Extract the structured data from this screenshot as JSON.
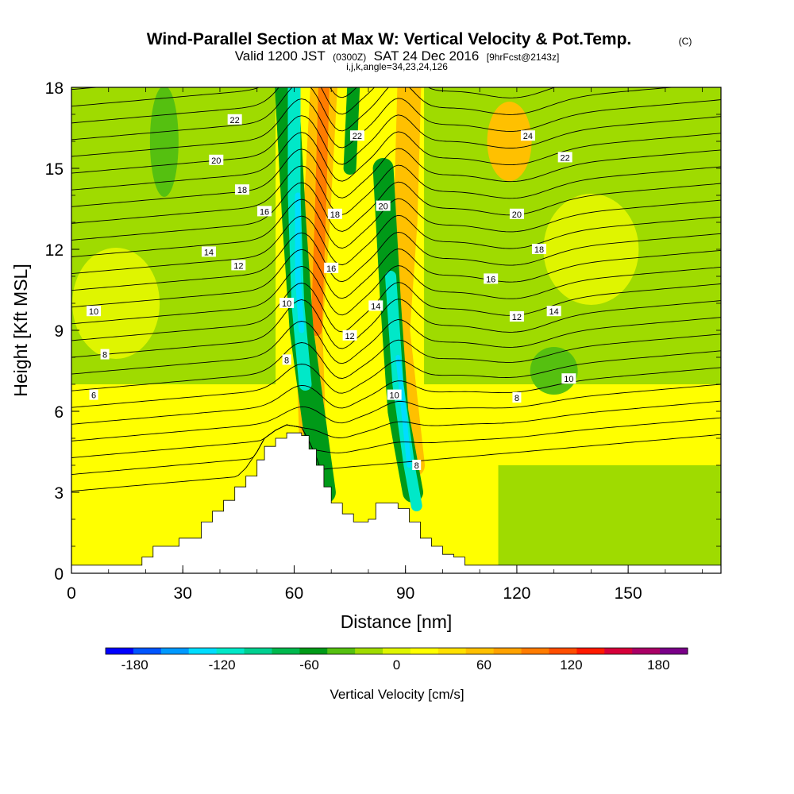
{
  "header": {
    "title": "Wind-Parallel Section at Max W: Vertical Velocity & Pot.Temp.",
    "copyright": "(C)",
    "valid_label": "Valid 1200 JST",
    "utc_label": "(0300Z)",
    "date_label": "SAT 24 Dec 2016",
    "fcst_label": "[9hrFcst@2143z]",
    "indices_label": "i,j,k,angle=34,23,24,126"
  },
  "chart_data": {
    "type": "heatmap",
    "xlabel": "Distance [nm]",
    "ylabel": "Height [Kft MSL]",
    "xlim": [
      0,
      175
    ],
    "ylim": [
      0,
      18
    ],
    "x_ticks": [
      "0",
      "30",
      "60",
      "90",
      "120",
      "150"
    ],
    "y_ticks": [
      "0",
      "3",
      "6",
      "9",
      "12",
      "15",
      "18"
    ],
    "colorbar": {
      "label": "Vertical Velocity [cm/s]",
      "range": [
        -200,
        200
      ],
      "tick_labels": [
        "-180",
        "-120",
        "-60",
        "0",
        "60",
        "120",
        "180"
      ],
      "colors": [
        "#0000ff",
        "#0055ff",
        "#0099ff",
        "#00ddff",
        "#00e8c8",
        "#00d090",
        "#00b84e",
        "#009a18",
        "#55c010",
        "#9fdb00",
        "#dff500",
        "#ffff00",
        "#ffe000",
        "#ffc000",
        "#ffa200",
        "#ff7c00",
        "#ff4e00",
        "#ff1a00",
        "#d6003a",
        "#aa0066",
        "#7a0088"
      ]
    },
    "terrain_height_kft": [
      {
        "x": 0,
        "h": 0.3
      },
      {
        "x": 18,
        "h": 0.3
      },
      {
        "x": 19,
        "h": 0.6
      },
      {
        "x": 22,
        "h": 1.0
      },
      {
        "x": 29,
        "h": 1.3
      },
      {
        "x": 35,
        "h": 1.9
      },
      {
        "x": 38,
        "h": 2.3
      },
      {
        "x": 41,
        "h": 2.7
      },
      {
        "x": 44,
        "h": 3.2
      },
      {
        "x": 47,
        "h": 3.6
      },
      {
        "x": 50,
        "h": 4.2
      },
      {
        "x": 52,
        "h": 4.7
      },
      {
        "x": 55,
        "h": 5.0
      },
      {
        "x": 58,
        "h": 5.2
      },
      {
        "x": 62,
        "h": 5.1
      },
      {
        "x": 64,
        "h": 4.6
      },
      {
        "x": 66,
        "h": 4.0
      },
      {
        "x": 68,
        "h": 3.2
      },
      {
        "x": 70,
        "h": 2.6
      },
      {
        "x": 73,
        "h": 2.2
      },
      {
        "x": 76,
        "h": 1.9
      },
      {
        "x": 80,
        "h": 2.0
      },
      {
        "x": 82,
        "h": 2.6
      },
      {
        "x": 86,
        "h": 2.6
      },
      {
        "x": 88,
        "h": 2.4
      },
      {
        "x": 91,
        "h": 1.9
      },
      {
        "x": 94,
        "h": 1.3
      },
      {
        "x": 97,
        "h": 1.0
      },
      {
        "x": 100,
        "h": 0.7
      },
      {
        "x": 103,
        "h": 0.6
      },
      {
        "x": 106,
        "h": 0.3
      },
      {
        "x": 175,
        "h": 0.3
      }
    ],
    "contour_labels": [
      {
        "text": "6",
        "x": 6,
        "y": 6.6
      },
      {
        "text": "8",
        "x": 9,
        "y": 8.1
      },
      {
        "text": "10",
        "x": 6,
        "y": 9.7
      },
      {
        "text": "12",
        "x": 45,
        "y": 11.4
      },
      {
        "text": "14",
        "x": 37,
        "y": 11.9
      },
      {
        "text": "16",
        "x": 52,
        "y": 13.4
      },
      {
        "text": "18",
        "x": 46,
        "y": 14.2
      },
      {
        "text": "20",
        "x": 39,
        "y": 15.3
      },
      {
        "text": "22",
        "x": 44,
        "y": 16.8
      },
      {
        "text": "10",
        "x": 58,
        "y": 10.0
      },
      {
        "text": "8",
        "x": 58,
        "y": 7.9
      },
      {
        "text": "18",
        "x": 71,
        "y": 13.3
      },
      {
        "text": "16",
        "x": 70,
        "y": 11.3
      },
      {
        "text": "22",
        "x": 77,
        "y": 16.2
      },
      {
        "text": "20",
        "x": 84,
        "y": 13.6
      },
      {
        "text": "14",
        "x": 82,
        "y": 9.9
      },
      {
        "text": "12",
        "x": 75,
        "y": 8.8
      },
      {
        "text": "10",
        "x": 87,
        "y": 6.6
      },
      {
        "text": "8",
        "x": 93,
        "y": 4.0
      },
      {
        "text": "24",
        "x": 123,
        "y": 16.2
      },
      {
        "text": "22",
        "x": 133,
        "y": 15.4
      },
      {
        "text": "20",
        "x": 120,
        "y": 13.3
      },
      {
        "text": "18",
        "x": 126,
        "y": 12.0
      },
      {
        "text": "16",
        "x": 113,
        "y": 10.9
      },
      {
        "text": "12",
        "x": 120,
        "y": 9.5
      },
      {
        "text": "14",
        "x": 130,
        "y": 9.7
      },
      {
        "text": "8",
        "x": 120,
        "y": 6.5
      },
      {
        "text": "10",
        "x": 134,
        "y": 7.2
      }
    ]
  }
}
